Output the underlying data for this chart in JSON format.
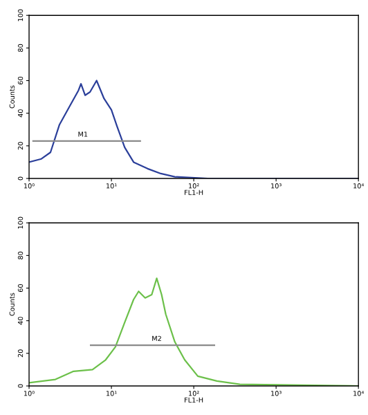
{
  "chart_data": [
    {
      "type": "line",
      "xlabel": "FL1-H",
      "ylabel": "Counts",
      "log": "x",
      "grid": false,
      "xlim": [
        1,
        10000
      ],
      "ylim": [
        0,
        100
      ],
      "xticks": [
        {
          "value": 1,
          "label": "10⁰"
        },
        {
          "value": 10,
          "label": "10¹"
        },
        {
          "value": 100,
          "label": "10²"
        },
        {
          "value": 1000,
          "label": "10³"
        },
        {
          "value": 10000,
          "label": "10⁴"
        }
      ],
      "yticks": [
        0,
        20,
        40,
        60,
        80,
        100
      ],
      "series": [
        {
          "color": "#2b3f9a",
          "x": [
            1,
            1.41,
            1.82,
            2.34,
            3.09,
            3.98,
            4.27,
            4.79,
            5.5,
            6.61,
            8.13,
            10,
            11.7,
            14.5,
            18.6,
            27.5,
            39.8,
            58.9,
            148,
            10000
          ],
          "values": [
            10,
            12,
            16,
            33,
            44,
            54,
            58,
            51,
            53,
            60,
            49,
            42,
            32,
            19,
            10,
            6,
            3,
            1,
            0,
            0
          ]
        },
        {
          "color": "#8a8a8a",
          "x": [
            1.12,
            22.4
          ],
          "values": [
            23,
            23
          ]
        }
      ],
      "annotations": [
        {
          "text": "M1",
          "x": 4.5,
          "y": 23
        }
      ]
    },
    {
      "type": "line",
      "xlabel": "FL1-H",
      "ylabel": "Counts",
      "log": "x",
      "grid": false,
      "xlim": [
        1,
        10000
      ],
      "ylim": [
        0,
        100
      ],
      "xticks": [
        {
          "value": 1,
          "label": "10⁰"
        },
        {
          "value": 10,
          "label": "10¹"
        },
        {
          "value": 100,
          "label": "10²"
        },
        {
          "value": 1000,
          "label": "10³"
        },
        {
          "value": 10000,
          "label": "10⁴"
        }
      ],
      "yticks": [
        0,
        20,
        40,
        60,
        80,
        100
      ],
      "series": [
        {
          "color": "#6cc04a",
          "x": [
            1,
            2.09,
            3.47,
            5.89,
            8.51,
            11.2,
            14.5,
            18.6,
            21.4,
            25.7,
            30.9,
            35.5,
            40.7,
            45.7,
            58.9,
            77.6,
            112,
            191,
            363,
            10000
          ],
          "values": [
            2,
            4,
            9,
            10,
            16,
            24,
            39,
            53,
            58,
            54,
            56,
            66,
            56,
            44,
            27,
            16,
            6,
            3,
            1,
            0
          ]
        },
        {
          "color": "#8a8a8a",
          "x": [
            5.6,
            178
          ],
          "values": [
            25,
            25
          ]
        }
      ],
      "annotations": [
        {
          "text": "M2",
          "x": 35.5,
          "y": 25
        }
      ]
    }
  ]
}
